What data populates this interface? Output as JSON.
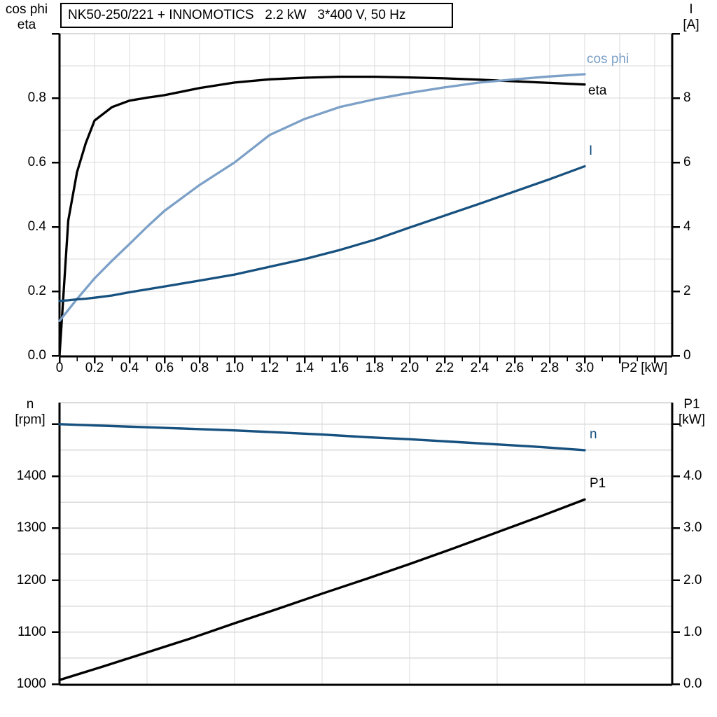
{
  "colors": {
    "curve_dark_blue": "#17517F",
    "curve_light_blue": "#7CA0C7",
    "curve_black": "#000000",
    "grid": "#D9D9D9",
    "frame_gray": "#C9C9C9",
    "axis": "#000000",
    "background": "#FFFFFF"
  },
  "chart_data": [
    {
      "type": "line",
      "title": "NK50-250/221 + INNOMOTICS   2.2 kW   3*400 V, 50 Hz",
      "xlabel": "P2 [kW]",
      "ylabel_left_lines": [
        "cos phi",
        "eta"
      ],
      "ylabel_right_lines": [
        "I",
        "[A]"
      ],
      "xlim": [
        0,
        3.5
      ],
      "ylim_left": [
        0,
        1.0
      ],
      "ylim_right": [
        0,
        10
      ],
      "grid": "on",
      "legend_position": "inline-right",
      "xticks": [
        {
          "v": 0.0,
          "label": "0"
        },
        {
          "v": 0.2,
          "label": "0.2"
        },
        {
          "v": 0.4,
          "label": "0.4"
        },
        {
          "v": 0.6,
          "label": "0.6"
        },
        {
          "v": 0.8,
          "label": "0.8"
        },
        {
          "v": 1.0,
          "label": "1.0"
        },
        {
          "v": 1.2,
          "label": "1.2"
        },
        {
          "v": 1.4,
          "label": "1.4"
        },
        {
          "v": 1.6,
          "label": "1.6"
        },
        {
          "v": 1.8,
          "label": "1.8"
        },
        {
          "v": 2.0,
          "label": "2.0"
        },
        {
          "v": 2.2,
          "label": "2.2"
        },
        {
          "v": 2.4,
          "label": "2.4"
        },
        {
          "v": 2.6,
          "label": "2.6"
        },
        {
          "v": 2.8,
          "label": "2.8"
        },
        {
          "v": 3.0,
          "label": "3.0"
        }
      ],
      "yticks_left": [
        {
          "v": 0.0,
          "label": "0.0"
        },
        {
          "v": 0.2,
          "label": "0.2"
        },
        {
          "v": 0.4,
          "label": "0.4"
        },
        {
          "v": 0.6,
          "label": "0.6"
        },
        {
          "v": 0.8,
          "label": "0.8"
        },
        {
          "v": 1.0,
          "label": ""
        }
      ],
      "yticks_right": [
        {
          "v": 0,
          "label": "0"
        },
        {
          "v": 2,
          "label": "2"
        },
        {
          "v": 4,
          "label": "4"
        },
        {
          "v": 6,
          "label": "6"
        },
        {
          "v": 8,
          "label": "8"
        },
        {
          "v": 10,
          "label": ""
        }
      ],
      "series": [
        {
          "name": "eta",
          "axis": "left",
          "color": "#000000",
          "x": [
            0,
            0.05,
            0.1,
            0.15,
            0.2,
            0.3,
            0.4,
            0.5,
            0.6,
            0.8,
            1.0,
            1.2,
            1.4,
            1.6,
            1.8,
            2.0,
            2.2,
            2.4,
            2.6,
            2.8,
            3.0
          ],
          "values": [
            0,
            0.42,
            0.57,
            0.66,
            0.73,
            0.772,
            0.792,
            0.801,
            0.809,
            0.831,
            0.848,
            0.858,
            0.863,
            0.866,
            0.866,
            0.864,
            0.861,
            0.857,
            0.852,
            0.847,
            0.842
          ]
        },
        {
          "name": "cos phi",
          "axis": "left",
          "color": "#7CA0C7",
          "x": [
            0,
            0.05,
            0.1,
            0.15,
            0.2,
            0.3,
            0.4,
            0.5,
            0.6,
            0.8,
            1.0,
            1.2,
            1.4,
            1.6,
            1.8,
            2.0,
            2.2,
            2.4,
            2.6,
            2.8,
            3.0
          ],
          "values": [
            0.108,
            0.142,
            0.176,
            0.208,
            0.24,
            0.295,
            0.347,
            0.4,
            0.45,
            0.53,
            0.6,
            0.685,
            0.735,
            0.772,
            0.796,
            0.816,
            0.833,
            0.848,
            0.858,
            0.867,
            0.874
          ]
        },
        {
          "name": "I",
          "axis": "right",
          "color": "#17517F",
          "x": [
            0,
            0.05,
            0.1,
            0.15,
            0.2,
            0.3,
            0.4,
            0.5,
            0.6,
            0.8,
            1.0,
            1.2,
            1.4,
            1.6,
            1.8,
            2.0,
            2.2,
            2.4,
            2.6,
            2.8,
            3.0
          ],
          "values": [
            1.7,
            1.72,
            1.75,
            1.77,
            1.8,
            1.87,
            1.97,
            2.06,
            2.15,
            2.33,
            2.52,
            2.76,
            3.0,
            3.28,
            3.6,
            3.98,
            4.35,
            4.72,
            5.1,
            5.48,
            5.88
          ]
        }
      ]
    },
    {
      "type": "line",
      "title": "",
      "xlabel": "",
      "ylabel_left_lines": [
        "n",
        "[rpm]"
      ],
      "ylabel_right_lines": [
        "P1",
        "[kW]"
      ],
      "xlim": [
        0,
        3.5
      ],
      "ylim_left": [
        1000,
        1541
      ],
      "ylim_right": [
        0,
        5.41
      ],
      "grid": "on",
      "legend_position": "inline-right",
      "xticks": [],
      "yticks_left": [
        {
          "v": 1000,
          "label": "1000"
        },
        {
          "v": 1100,
          "label": "1100"
        },
        {
          "v": 1200,
          "label": "1200"
        },
        {
          "v": 1300,
          "label": "1300"
        },
        {
          "v": 1400,
          "label": "1400"
        },
        {
          "v": 1500,
          "label": ""
        }
      ],
      "yticks_right": [
        {
          "v": 0,
          "label": "0.0"
        },
        {
          "v": 1,
          "label": "1.0"
        },
        {
          "v": 2,
          "label": "2.0"
        },
        {
          "v": 3,
          "label": "3.0"
        },
        {
          "v": 4,
          "label": "4.0"
        },
        {
          "v": 5,
          "label": ""
        }
      ],
      "series": [
        {
          "name": "n",
          "axis": "left",
          "color": "#17517F",
          "x": [
            0,
            0.25,
            0.5,
            0.75,
            1.0,
            1.25,
            1.5,
            1.75,
            2.0,
            2.25,
            2.5,
            2.75,
            3.0
          ],
          "values": [
            1500,
            1497,
            1494,
            1491,
            1488,
            1484,
            1480,
            1475,
            1471,
            1466,
            1461,
            1456,
            1450
          ]
        },
        {
          "name": "P1",
          "axis": "right",
          "color": "#000000",
          "x": [
            0,
            0.25,
            0.5,
            0.75,
            1.0,
            1.25,
            1.5,
            1.75,
            2.0,
            2.25,
            2.5,
            2.75,
            3.0
          ],
          "values": [
            0.08,
            0.34,
            0.61,
            0.88,
            1.17,
            1.45,
            1.74,
            2.02,
            2.31,
            2.61,
            2.92,
            3.23,
            3.55
          ]
        }
      ]
    }
  ]
}
